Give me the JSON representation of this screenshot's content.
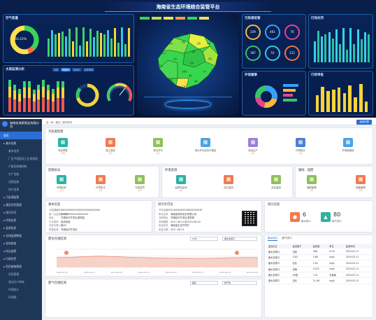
{
  "dashboard": {
    "title": "海南省生态环境综合监管平台",
    "left_top_title": "空气质量",
    "left_top_value": "93.22%",
    "left_mid_title": "水质监测分析",
    "tabs": [
      "全部",
      "地表水",
      "饮用水",
      "近岸海域"
    ],
    "right_top1_title": "污染源监管",
    "right_top2_title": "行政处罚",
    "right_mid1_title": "环保督察",
    "right_mid2_title": "行政审批",
    "circle_values": [
      "229",
      "461",
      "76",
      "387",
      "53",
      "112"
    ],
    "map_region_labels": [
      "海口",
      "文昌",
      "琼海",
      "万宁",
      "陵水",
      "三亚",
      "乐东",
      "东方",
      "昌江",
      "儋州",
      "临高",
      "澄迈",
      "屯昌",
      "定安",
      "琼中",
      "五指山",
      "保亭",
      "白沙"
    ]
  },
  "app": {
    "company": "海南金海浆纸业有限公司",
    "sidebar": [
      {
        "label": "首页",
        "type": "act"
      },
      {
        "label": "基本档案",
        "type": "grp"
      },
      {
        "label": "基本信息",
        "type": "sub"
      },
      {
        "label": "厂区平面图及工艺流程图",
        "type": "sub"
      },
      {
        "label": "产能及原辅材料",
        "type": "sub"
      },
      {
        "label": "生产设施",
        "type": "sub"
      },
      {
        "label": "治理设施",
        "type": "sub"
      },
      {
        "label": "排口信息",
        "type": "sub"
      },
      {
        "label": "污染源监管",
        "type": "grp"
      },
      {
        "label": "建设项目管理",
        "type": "grp"
      },
      {
        "label": "排污许可",
        "type": "grp"
      },
      {
        "label": "环境信息",
        "type": "grp"
      },
      {
        "label": "监测信息",
        "type": "grp"
      },
      {
        "label": "在线监测数据",
        "type": "grp"
      },
      {
        "label": "现场检查",
        "type": "grp"
      },
      {
        "label": "执法监察",
        "type": "grp"
      },
      {
        "label": "行政处罚",
        "type": "grp"
      },
      {
        "label": "危险废物管理",
        "type": "grp"
      },
      {
        "label": "信用管理",
        "type": "sub"
      },
      {
        "label": "清洁生产审核",
        "type": "sub"
      },
      {
        "label": "环境统计",
        "type": "sub"
      },
      {
        "label": "环保税",
        "type": "sub"
      }
    ],
    "breadcrumb": [
      "全一体",
      "首页",
      "基本情况"
    ],
    "top_button": "返回列表",
    "sec1_title": "污染源监管",
    "sec1_items": [
      {
        "label": "项目审批",
        "count": "(15)",
        "color": "#2bb3a3"
      },
      {
        "label": "竣工验收",
        "count": "(1)",
        "color": "#f07a52"
      },
      {
        "label": "排污许可",
        "count": "(1)",
        "color": "#8fbf5a"
      },
      {
        "label": "排污许可证执行报告",
        "count": "",
        "color": "#4da3e0"
      },
      {
        "label": "清洁生产",
        "count": "(1)",
        "color": "#9b7fd9"
      },
      {
        "label": "环境统计",
        "count": "(1)",
        "color": "#4a7fd6"
      },
      {
        "label": "环保税缴纳",
        "count": "",
        "color": "#4aa3e6"
      }
    ],
    "sec2_title": "监管执法",
    "sec2_items": [
      {
        "label": "现场检查",
        "count": "(1)",
        "color": "#2bb3a3"
      },
      {
        "label": "环境执法",
        "count": "(1)",
        "color": "#f07a52"
      },
      {
        "label": "行政处罚",
        "count": "(1)",
        "color": "#8fbf5a"
      }
    ],
    "sec3_title": "环境监测",
    "sec3_items": [
      {
        "label": "监督性监测",
        "count": "(1)",
        "color": "#2bb3a3"
      },
      {
        "label": "自行监测",
        "count": "",
        "color": "#f07a52"
      },
      {
        "label": "自动监测",
        "count": "",
        "color": "#8fbf5a"
      }
    ],
    "sec4_title": "辐射、固废",
    "sec4_items": [
      {
        "label": "辐射管理",
        "count": "(1)",
        "color": "#8fbf5a"
      },
      {
        "label": "固废管理",
        "count": "(1)",
        "color": "#f07a52"
      }
    ],
    "basic_title": "基本信息",
    "basic_rows": [
      {
        "k": "污染源编码",
        "v": "46000000000000000000000000"
      },
      {
        "k": "统一社会信用代码",
        "v": "9146000000000000XX"
      },
      {
        "k": "地址",
        "v": "洋浦经济开发区浦发路"
      },
      {
        "k": "行业类别",
        "v": "纸浆制造"
      },
      {
        "k": "法定代表人",
        "v": "黄XX"
      },
      {
        "k": "所属区域",
        "v": "洋浦经济开发区"
      }
    ],
    "permit_title": "排污许可证",
    "permit_rows": [
      {
        "k": "许可证编号",
        "v": "91460000000000000001P"
      },
      {
        "k": "单位名称",
        "v": "海南金海浆纸业有限公司"
      },
      {
        "k": "注册地址",
        "v": "洋浦经济开发区浦发路"
      },
      {
        "k": "有效期限",
        "v": "2017-06-21至2020-06-20"
      },
      {
        "k": "发证机关",
        "v": "海南省生态环境厅"
      },
      {
        "k": "发证日期",
        "v": "2017-06-21"
      }
    ],
    "outlet_title": "排口信息",
    "outlet_water_count": "6",
    "outlet_water_label": "废水排口",
    "outlet_gas_count": "80",
    "outlet_gas_label": "废气排口",
    "trend_title": "废水在线监测",
    "trend_select1": "COD",
    "trend_select2": "废水总排口",
    "trend_dates": [
      "2019-02-12",
      "2019-02-13",
      "2019-02-14",
      "2019-02-15",
      "2019-02-16",
      "2019-02-17",
      "2019-02-18",
      "2019-02-19"
    ],
    "trend2_title": "废气在线监测",
    "trend2_select": "烟尘",
    "trend2_select2": "排气筒",
    "table_tabs": [
      "废水排口",
      "废气排口"
    ],
    "table_headers": [
      "监测点位",
      "监测因子",
      "监测值",
      "单位",
      "监测时间"
    ],
    "table_rows": [
      [
        "废水总排口",
        "流量",
        "286",
        "m³/h",
        "2019-02-11"
      ],
      [
        "废水总排口",
        "COD",
        "3.68",
        "mg/L",
        "2019-02-11"
      ],
      [
        "废水总排口",
        "氨氮",
        "1.62",
        "mg/L",
        "2019-02-11"
      ],
      [
        "废水总排口",
        "总磷",
        "0.252",
        "mg/L",
        "2019-02-11"
      ],
      [
        "废水总排口",
        "pH值",
        "7.21",
        "无量纲",
        "2019-02-11"
      ],
      [
        "废水总排口",
        "总氮",
        "11.98",
        "mg/L",
        "2019-02-11"
      ]
    ]
  }
}
